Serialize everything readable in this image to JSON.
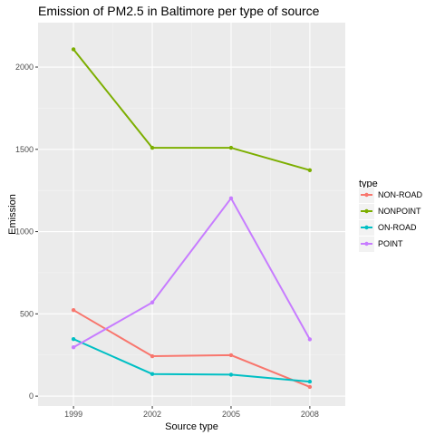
{
  "chart_data": {
    "type": "line",
    "title": "Emission of PM2.5 in Baltimore per type of source",
    "xlabel": "Source type",
    "ylabel": "Emission",
    "x": [
      1999,
      2002,
      2005,
      2008
    ],
    "x_ticks": [
      "1999",
      "2002",
      "2005",
      "2008"
    ],
    "y_ticks": [
      0,
      500,
      1000,
      1500,
      2000
    ],
    "ylim": [
      -60,
      2270
    ],
    "grid": true,
    "legend": {
      "title": "type",
      "position": "right"
    },
    "series": [
      {
        "name": "NON-ROAD",
        "color": "#F8766D",
        "values": [
          522.9,
          242.7,
          248.9,
          55.8
        ]
      },
      {
        "name": "NONPOINT",
        "color": "#7CAE00",
        "values": [
          2107.6,
          1509.5,
          1509.5,
          1373.2
        ]
      },
      {
        "name": "ON-ROAD",
        "color": "#00BFC4",
        "values": [
          346.8,
          134.3,
          130.4,
          88.3
        ]
      },
      {
        "name": "POINT",
        "color": "#C77CFF",
        "values": [
          296.8,
          569.3,
          1202.5,
          344.98
        ]
      }
    ]
  }
}
